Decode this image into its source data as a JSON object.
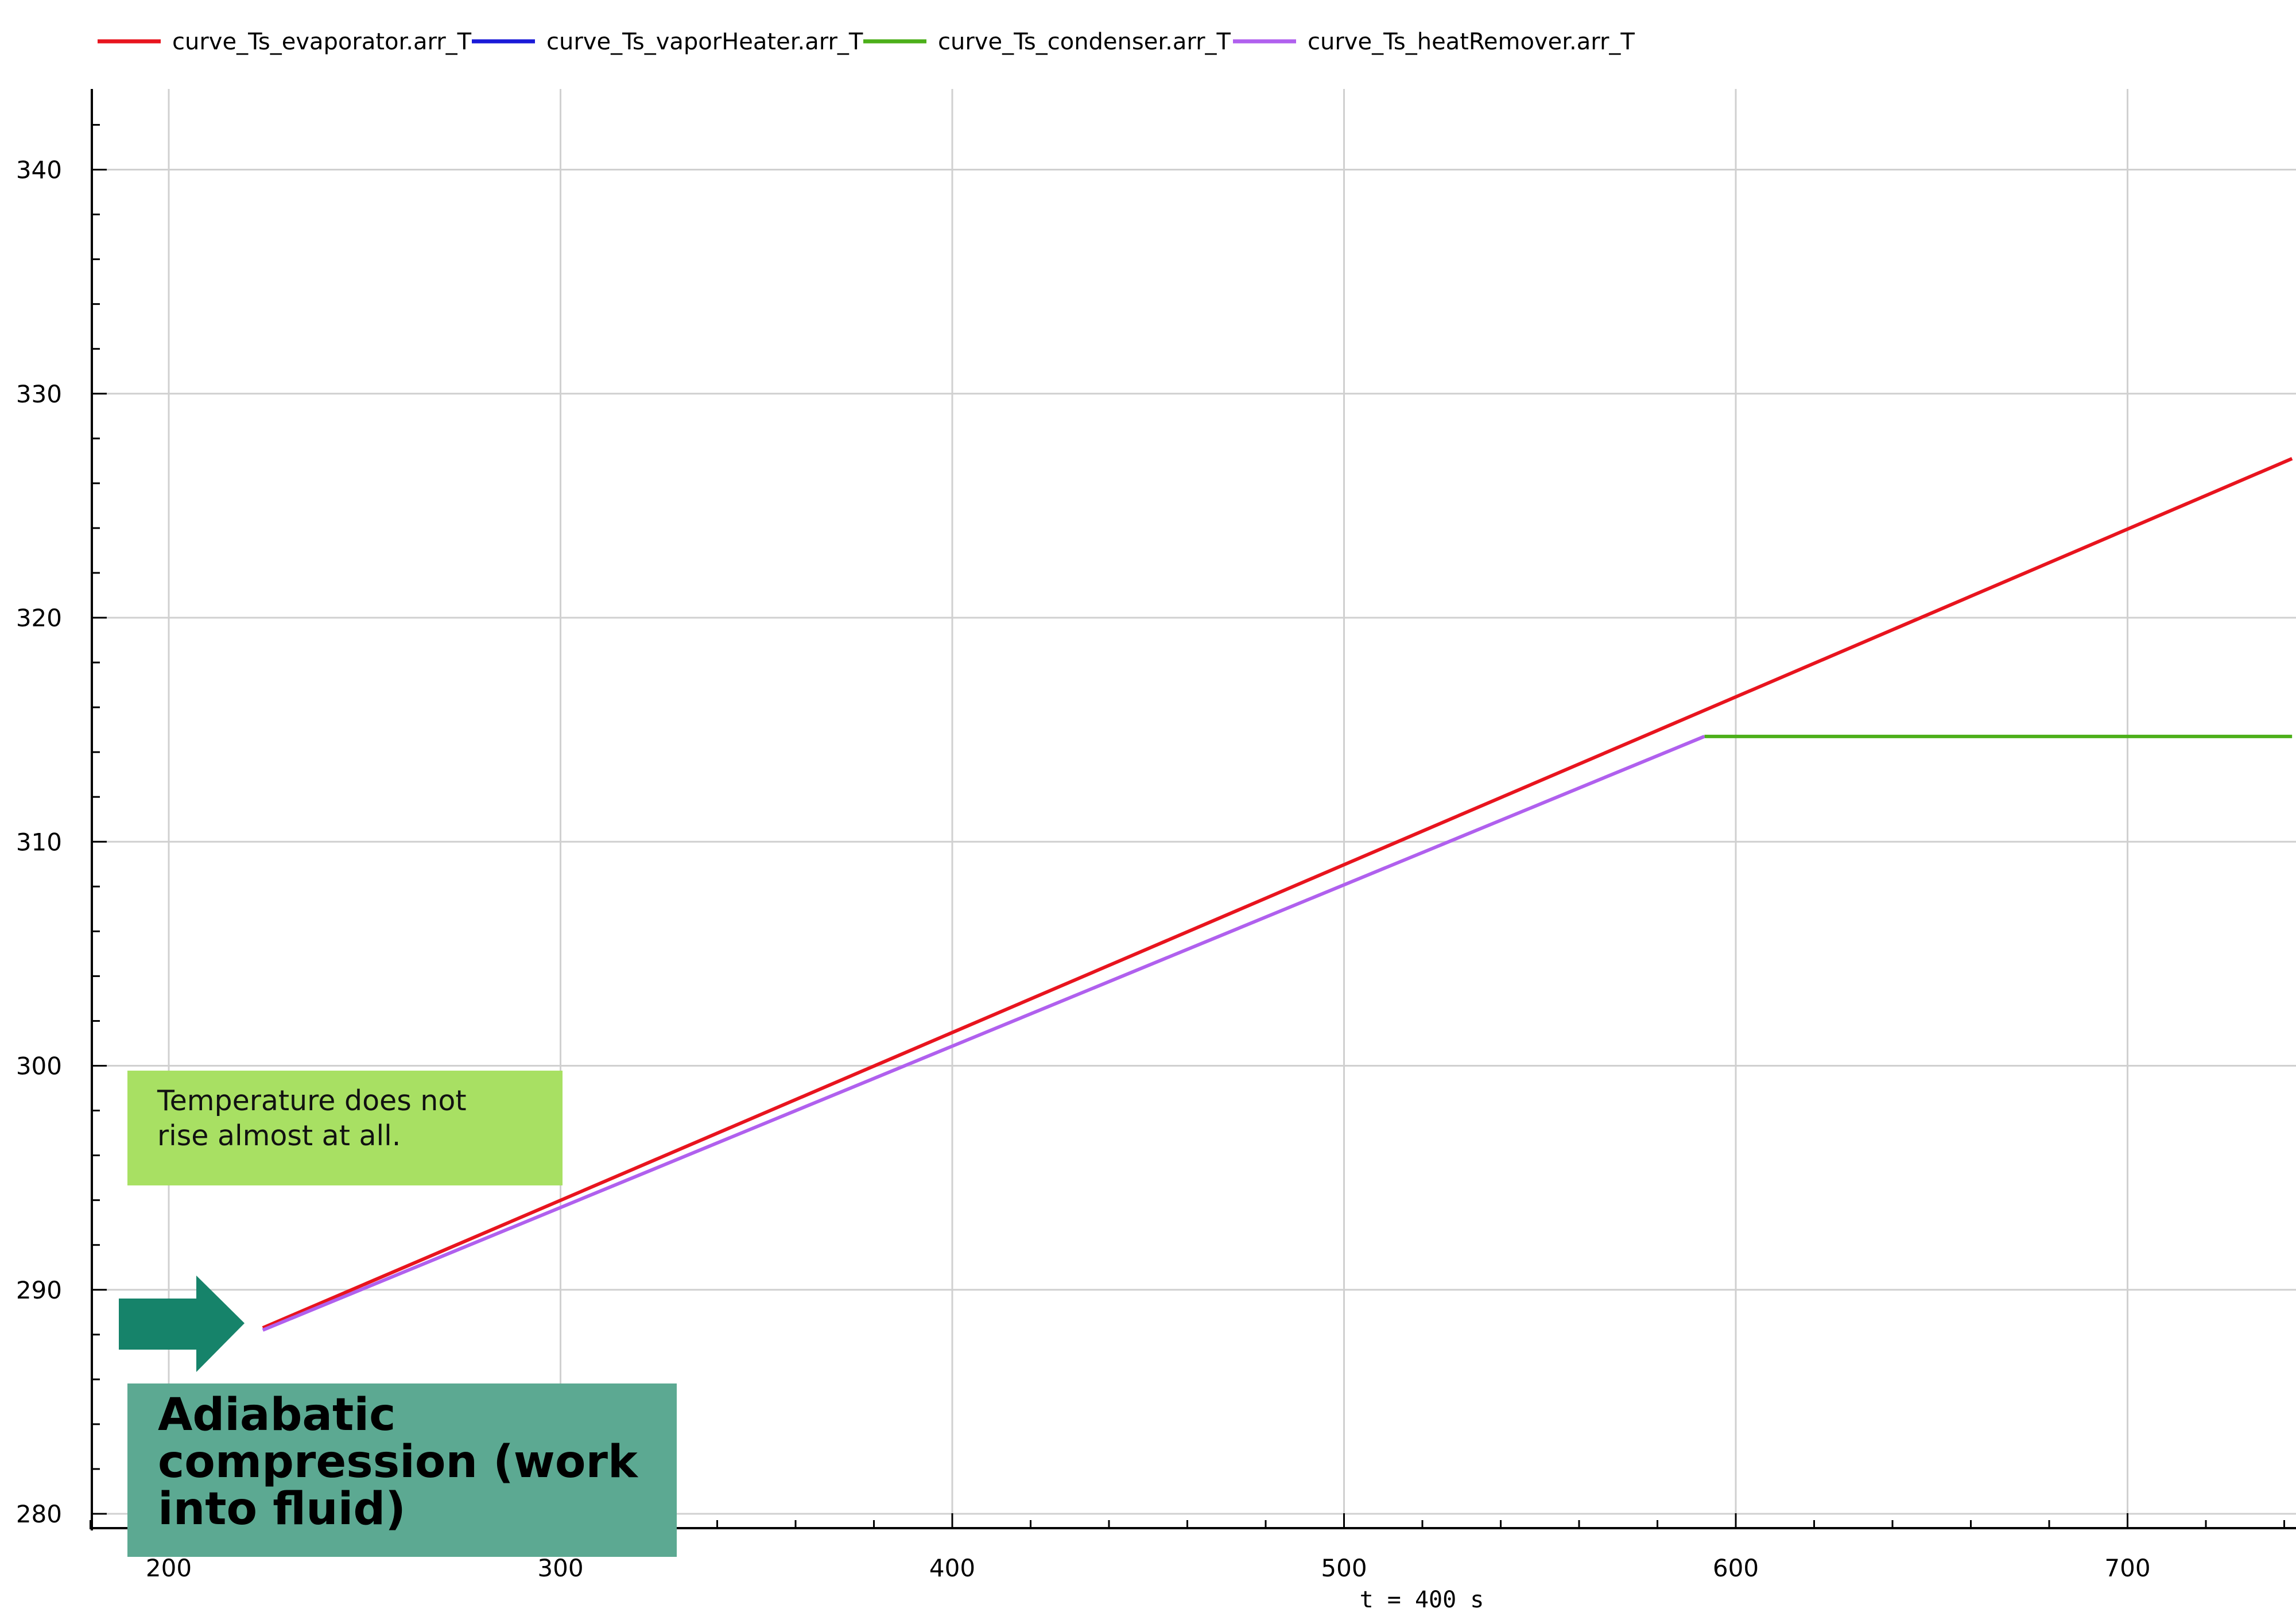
{
  "chart_data": {
    "type": "line",
    "xlabel": "t = 400 s",
    "ylabel": "",
    "xlim": [
      180,
      742
    ],
    "ylim": [
      279.5,
      343.7
    ],
    "x_ticks": [
      200,
      300,
      400,
      500,
      600,
      700
    ],
    "y_ticks": [
      280,
      290,
      300,
      310,
      320,
      330,
      340
    ],
    "grid": true,
    "legend_position": "top-left",
    "series": [
      {
        "name": "curve_Ts_evaporator.arr_T",
        "color": "#e8141e",
        "x": [
          224,
          742
        ],
        "y": [
          288.3,
          327.1
        ]
      },
      {
        "name": "curve_Ts_vaporHeater.arr_T",
        "color": "#1a1ad8",
        "x": [],
        "y": []
      },
      {
        "name": "curve_Ts_condenser.arr_T",
        "color": "#4caf1a",
        "x": [
          592,
          742
        ],
        "y": [
          314.7,
          314.7
        ]
      },
      {
        "name": "curve_Ts_heatRemover.arr_T",
        "color": "#b060ee",
        "x": [
          224,
          592
        ],
        "y": [
          288.2,
          314.7
        ]
      }
    ],
    "annotations": [
      {
        "text": "Temperature does not rise almost at all.",
        "color": "#a8e063"
      },
      {
        "text": "Adiabatic compression (work into fluid)",
        "color": "#5ca992"
      }
    ],
    "arrow_color": "#16836a"
  },
  "notes": {
    "yellow_line1": "Temperature does not",
    "yellow_line2": "rise almost at all.",
    "green_line1": "Adiabatic",
    "green_line2": "compression (work",
    "green_line3": "into fluid)"
  }
}
